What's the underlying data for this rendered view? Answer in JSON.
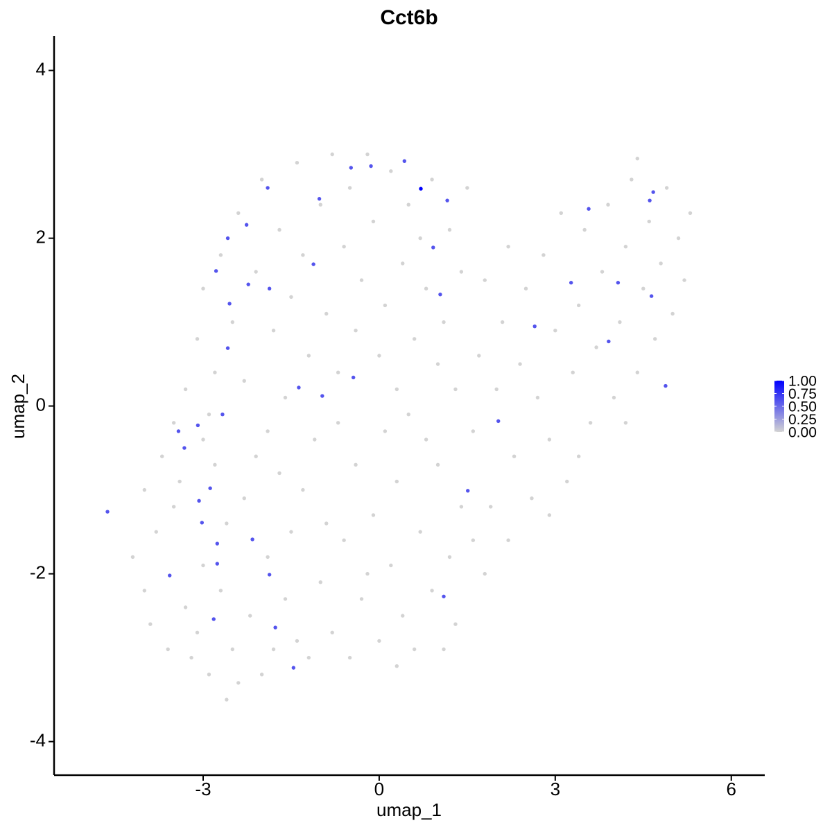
{
  "chart_data": {
    "type": "scatter",
    "title": "Cct6b",
    "xlabel": "umap_1",
    "ylabel": "umap_2",
    "xlim": [
      -5.54,
      6.57
    ],
    "ylim": [
      -4.4,
      4.41
    ],
    "xticks": [
      -3,
      0,
      3,
      6
    ],
    "yticks": [
      -4,
      -2,
      0,
      2,
      4
    ],
    "x": [
      -4.2,
      -4.0,
      -3.8,
      -3.9,
      -3.6,
      -3.5,
      -3.3,
      -3.2,
      -3.0,
      -3.1,
      -2.9,
      -2.7,
      -2.6,
      -2.5,
      -2.4,
      -2.3,
      -2.2,
      -2.0,
      -1.9,
      -1.8,
      -1.7,
      -1.6,
      -2.8,
      -3.4,
      -3.7,
      -4.0,
      -2.6,
      -2.1,
      -1.5,
      -3.0,
      -1.4,
      -1.2,
      -1.0,
      -0.8,
      -0.6,
      -0.5,
      -0.3,
      -0.1,
      0.0,
      0.2,
      0.3,
      0.4,
      0.6,
      0.7,
      0.9,
      1.0,
      1.2,
      1.3,
      1.4,
      -1.3,
      -1.1,
      -0.7,
      -0.4,
      0.1,
      0.5,
      0.8,
      1.1,
      -0.9,
      0.3,
      -0.2,
      -3.3,
      -3.1,
      -3.0,
      -2.8,
      -2.7,
      -2.5,
      -2.4,
      -2.3,
      -2.1,
      -2.0,
      -1.8,
      -1.7,
      -1.6,
      -1.5,
      -1.4,
      -1.3,
      -1.2,
      -1.0,
      -0.9,
      -0.8,
      -0.7,
      -0.6,
      -0.5,
      -0.4,
      -0.3,
      -0.2,
      -0.1,
      0.0,
      0.1,
      0.2,
      0.3,
      0.4,
      0.5,
      0.6,
      0.7,
      0.8,
      0.9,
      1.0,
      1.1,
      1.2,
      1.3,
      1.4,
      1.5,
      -3.5,
      -2.9,
      -1.9,
      1.6,
      1.7,
      1.8,
      1.9,
      2.0,
      2.1,
      2.2,
      2.3,
      2.4,
      2.5,
      2.6,
      2.7,
      2.8,
      2.9,
      3.0,
      3.1,
      3.2,
      3.3,
      3.4,
      3.5,
      3.6,
      3.7,
      3.8,
      3.9,
      4.0,
      4.1,
      4.2,
      4.3,
      4.4,
      4.5,
      4.6,
      4.7,
      4.8,
      4.9,
      5.0,
      5.1,
      5.2,
      5.3,
      4.4,
      1.8,
      1.6,
      2.2,
      2.9,
      3.4,
      4.2,
      0.43,
      -0.14,
      -0.48,
      1.16,
      0.92,
      1.04,
      -1.02,
      -1.12,
      -1.9,
      -2.26,
      -2.58,
      -2.78,
      -2.23,
      -1.87,
      -2.55,
      -2.58,
      -1.37,
      -0.97,
      -0.44,
      -2.67,
      -3.09,
      -3.42,
      -3.32,
      -2.88,
      -3.07,
      -3.02,
      -4.63,
      -2.76,
      -2.16,
      -2.76,
      -1.87,
      -3.57,
      -2.82,
      -1.77,
      -1.46,
      1.1,
      1.51,
      2.03,
      2.65,
      3.27,
      3.57,
      4.07,
      3.91,
      4.64,
      4.61,
      4.67,
      4.88,
      0.71
    ],
    "y": [
      -1.8,
      -2.2,
      -1.5,
      -2.6,
      -2.9,
      -1.2,
      -2.4,
      -3.0,
      -1.9,
      -2.7,
      -3.2,
      -2.2,
      -1.4,
      -2.9,
      -3.3,
      -1.1,
      -2.5,
      -3.2,
      -1.8,
      -2.9,
      -0.8,
      -2.3,
      -0.7,
      -0.9,
      -0.6,
      -1.0,
      -3.5,
      -0.6,
      -1.5,
      -0.4,
      -2.8,
      -3.0,
      -2.1,
      -2.7,
      -1.6,
      -3.0,
      -2.3,
      -1.3,
      -2.8,
      -1.9,
      -0.9,
      -2.5,
      -2.9,
      -1.5,
      -2.2,
      -0.7,
      -1.8,
      -2.6,
      -1.2,
      -1.0,
      -0.4,
      -0.2,
      -0.7,
      -0.3,
      -0.1,
      -0.4,
      -2.9,
      -1.4,
      -3.1,
      -2.0,
      0.2,
      0.8,
      1.4,
      0.4,
      1.8,
      1.0,
      2.3,
      0.3,
      1.6,
      2.7,
      0.9,
      2.1,
      0.1,
      1.3,
      2.9,
      1.8,
      0.6,
      2.4,
      1.1,
      3.0,
      0.4,
      1.9,
      2.6,
      0.9,
      1.5,
      3.0,
      2.2,
      0.6,
      1.2,
      2.8,
      0.2,
      1.7,
      2.4,
      0.8,
      2.0,
      1.4,
      2.7,
      0.5,
      1.0,
      2.1,
      0.2,
      1.6,
      2.6,
      -0.2,
      -0.1,
      -0.3,
      -0.3,
      0.6,
      1.5,
      -1.2,
      0.2,
      1.0,
      1.9,
      -0.6,
      0.5,
      1.4,
      -1.1,
      0.1,
      1.8,
      -0.4,
      0.9,
      2.3,
      -0.9,
      0.4,
      1.2,
      2.1,
      -0.2,
      0.7,
      1.6,
      2.4,
      0.1,
      1.0,
      1.9,
      2.7,
      0.4,
      1.4,
      2.2,
      0.8,
      1.7,
      2.6,
      1.1,
      2.0,
      1.5,
      2.3,
      2.95,
      -2.0,
      -1.6,
      -1.6,
      -1.3,
      -0.6,
      -0.2,
      2.92,
      2.86,
      2.84,
      2.45,
      1.89,
      1.33,
      2.47,
      1.69,
      2.6,
      2.16,
      2.0,
      1.61,
      1.45,
      1.4,
      1.22,
      0.69,
      0.22,
      0.12,
      0.34,
      -0.1,
      -0.23,
      -0.3,
      -0.5,
      -0.98,
      -1.13,
      -1.39,
      -1.26,
      -1.64,
      -1.59,
      -1.88,
      -2.01,
      -2.02,
      -2.54,
      -2.64,
      -3.12,
      -2.27,
      -1.01,
      -0.18,
      0.95,
      1.47,
      2.35,
      1.47,
      0.77,
      1.31,
      2.45,
      2.55,
      0.24,
      2.59
    ],
    "values": [
      0,
      0,
      0,
      0,
      0,
      0,
      0,
      0,
      0,
      0,
      0,
      0,
      0,
      0,
      0,
      0,
      0,
      0,
      0,
      0,
      0,
      0,
      0,
      0,
      0,
      0,
      0,
      0,
      0,
      0,
      0,
      0,
      0,
      0,
      0,
      0,
      0,
      0,
      0,
      0,
      0,
      0,
      0,
      0,
      0,
      0,
      0,
      0,
      0,
      0,
      0,
      0,
      0,
      0,
      0,
      0,
      0,
      0,
      0,
      0,
      0,
      0,
      0,
      0,
      0,
      0,
      0,
      0,
      0,
      0,
      0,
      0,
      0,
      0,
      0,
      0,
      0,
      0,
      0,
      0,
      0,
      0,
      0,
      0,
      0,
      0,
      0,
      0,
      0,
      0,
      0,
      0,
      0,
      0,
      0,
      0,
      0,
      0,
      0,
      0,
      0,
      0,
      0,
      0,
      0,
      0,
      0,
      0,
      0,
      0,
      0,
      0,
      0,
      0,
      0,
      0,
      0,
      0,
      0,
      0,
      0,
      0,
      0,
      0,
      0,
      0,
      0,
      0,
      0,
      0,
      0,
      0,
      0,
      0,
      0,
      0,
      0,
      0,
      0,
      0,
      0,
      0,
      0,
      0,
      0,
      0,
      0,
      0,
      0,
      0,
      0,
      0.6,
      0.6,
      0.6,
      0.6,
      0.6,
      0.6,
      0.6,
      0.6,
      0.6,
      0.6,
      0.6,
      0.6,
      0.6,
      0.6,
      0.6,
      0.6,
      0.6,
      0.6,
      0.6,
      0.6,
      0.6,
      0.6,
      0.6,
      0.6,
      0.6,
      0.6,
      0.6,
      0.6,
      0.6,
      0.6,
      0.6,
      0.6,
      0.6,
      0.6,
      0.6,
      0.6,
      0.6,
      0.6,
      0.6,
      0.6,
      0.6,
      0.6,
      0.6,
      0.6,
      0.6,
      0.6,
      0.6,
      1.0
    ],
    "colorscale": {
      "low": "#d3d3d3",
      "high": "#0000ff",
      "lim": [
        0,
        1
      ],
      "ticks": [
        {
          "value": 0,
          "label": "0.00"
        },
        {
          "value": 0.25,
          "label": "0.25"
        },
        {
          "value": 0.5,
          "label": "0.50"
        },
        {
          "value": 0.75,
          "label": "0.75"
        },
        {
          "value": 1,
          "label": "1.00"
        }
      ]
    }
  }
}
